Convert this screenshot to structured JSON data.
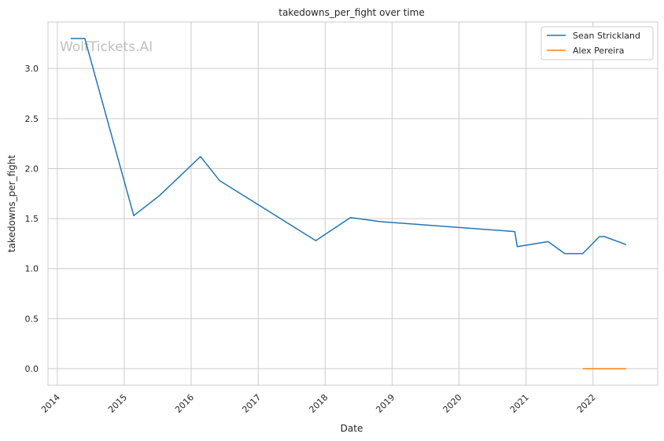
{
  "chart_data": {
    "type": "line",
    "title": "takedowns_per_fight over time",
    "xlabel": "Date",
    "ylabel": "takedowns_per_fight",
    "watermark": "WolfTickets.AI",
    "x_ticks": [
      "2014",
      "2015",
      "2016",
      "2017",
      "2018",
      "2019",
      "2020",
      "2021",
      "2022"
    ],
    "y_ticks": [
      "0.0",
      "0.5",
      "1.0",
      "1.5",
      "2.0",
      "2.5",
      "3.0"
    ],
    "xlim": [
      "2013-11-11",
      "2022-12-20"
    ],
    "ylim": [
      -0.165,
      3.465
    ],
    "grid": true,
    "legend_position": "top-right",
    "series": [
      {
        "name": "Sean Strickland",
        "color": "#1f77b4",
        "points": [
          [
            "2014-03-15",
            3.3
          ],
          [
            "2014-05-31",
            3.3
          ],
          [
            "2015-02-22",
            1.53
          ],
          [
            "2015-07-12",
            1.73
          ],
          [
            "2016-02-21",
            2.12
          ],
          [
            "2016-06-04",
            1.88
          ],
          [
            "2017-11-11",
            1.28
          ],
          [
            "2018-05-19",
            1.51
          ],
          [
            "2018-10-27",
            1.47
          ],
          [
            "2020-10-31",
            1.37
          ],
          [
            "2020-11-14",
            1.22
          ],
          [
            "2021-05-01",
            1.27
          ],
          [
            "2021-07-31",
            1.15
          ],
          [
            "2021-11-06",
            1.15
          ],
          [
            "2022-02-05",
            1.32
          ],
          [
            "2022-03-05",
            1.32
          ],
          [
            "2022-07-01",
            1.24
          ]
        ]
      },
      {
        "name": "Alex Pereira",
        "color": "#ff7f0e",
        "points": [
          [
            "2021-11-06",
            0.0
          ],
          [
            "2022-07-01",
            0.0
          ]
        ]
      }
    ]
  }
}
